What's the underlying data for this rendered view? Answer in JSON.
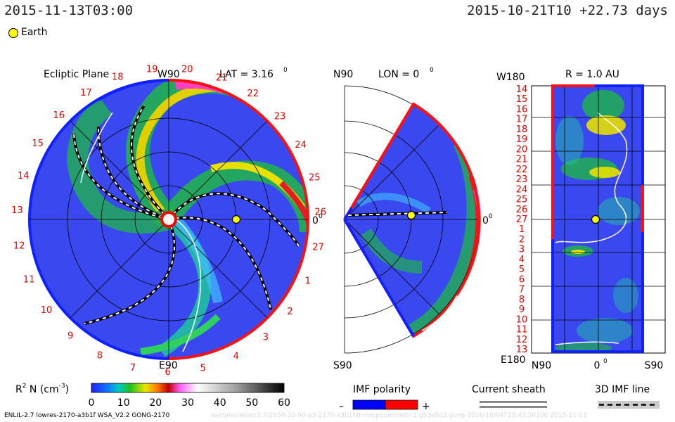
{
  "header": {
    "model_time": "2015-11-13T03:00",
    "run_info": "2015-10-21T10 +22.73 days",
    "legend_earth": "Earth"
  },
  "colors": {
    "polarity_negative": "#0000ff",
    "polarity_positive": "#ff0000",
    "earth": "#ffff00"
  },
  "chart_data": [
    {
      "type": "heatmap",
      "title": "Ecliptic Plane",
      "annotation": "LAT = 3.16",
      "annotation_sup": "0",
      "top_label": "W90",
      "bottom_label": "E90",
      "right_label": "0",
      "right_label_sup": "0",
      "carrington_labels": [
        "20",
        "21",
        "22",
        "23",
        "24",
        "25",
        "26",
        "27",
        "1",
        "2",
        "3",
        "4",
        "5",
        "6",
        "7",
        "8",
        "9",
        "10",
        "11",
        "12",
        "13",
        "14",
        "15",
        "16",
        "17",
        "18",
        "19"
      ]
    },
    {
      "type": "heatmap",
      "title": "LON = 0",
      "title_sup": "0",
      "top_label": "N90",
      "bottom_label": "S90",
      "right_label": "0",
      "right_label_sup": "0"
    },
    {
      "type": "heatmap",
      "title": "R = 1.0 AU",
      "top_left_label": "W180",
      "bottom_left_label": "E180",
      "x_tick_labels": [
        "N90",
        "0",
        "S90"
      ],
      "x_tick_sup": "0",
      "y_tick_labels": [
        "14",
        "15",
        "16",
        "17",
        "18",
        "19",
        "20",
        "21",
        "22",
        "23",
        "24",
        "25",
        "26",
        "27",
        "1",
        "2",
        "3",
        "4",
        "5",
        "6",
        "7",
        "8",
        "9",
        "10",
        "11",
        "12",
        "13"
      ]
    }
  ],
  "colorbar": {
    "label": "R",
    "label_sup": "2",
    "label_rest": " N (cm",
    "label_sup2": "-3",
    "label_end": ")",
    "ticks": [
      "0",
      "10",
      "20",
      "30",
      "40",
      "50",
      "60"
    ],
    "range": [
      0,
      60
    ]
  },
  "legends": {
    "imf_polarity": "IMF polarity",
    "minus": "–",
    "plus": "+",
    "current_sheath": "Current sheath",
    "imf_line": "3D IMF line"
  },
  "footer": {
    "left": "ENLIL-2.7 lowres-2170-a3b1f WSA_V2.2 GONG-2170",
    "ghost": "samples/wsatr2.7/2950-30-90-a3-2170-a3b1f.B=mcp1umnled=1.g93a5d2.gong-2016/10/04T13:45:20100 2015-11-13"
  }
}
